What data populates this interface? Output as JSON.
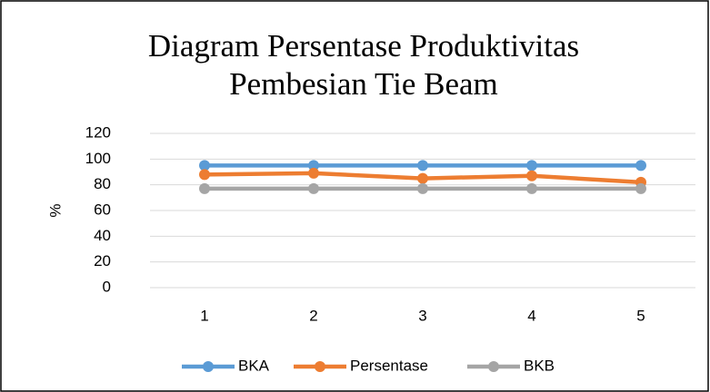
{
  "chart_data": {
    "type": "line",
    "title": "Diagram Persentase Produktivitas Pembesian Tie Beam",
    "y_label": "%",
    "categories": [
      "1",
      "2",
      "3",
      "4",
      "5"
    ],
    "series": [
      {
        "name": "BKA",
        "color": "#5b9bd5",
        "values": [
          95,
          95,
          95,
          95,
          95
        ]
      },
      {
        "name": "Persentase",
        "color": "#ed7d31",
        "values": [
          88,
          89,
          85,
          87,
          82
        ]
      },
      {
        "name": "BKB",
        "color": "#a5a5a5",
        "values": [
          77,
          77,
          77,
          77,
          77
        ]
      }
    ],
    "ylim": [
      0,
      120
    ],
    "yticks": [
      0,
      20,
      40,
      60,
      80,
      100,
      120
    ],
    "grid": true,
    "legend": "bottom"
  }
}
